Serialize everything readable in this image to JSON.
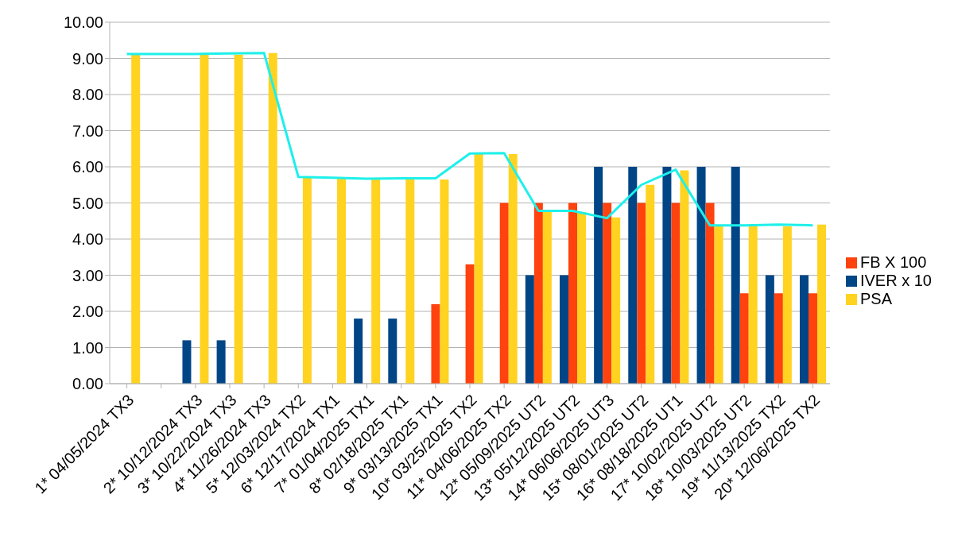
{
  "chart_data": {
    "type": "bar",
    "categories": [
      "1* 04/05/2024 TX3",
      null,
      "2* 10/12/2024 TX3",
      "3* 10/22/2024 TX3",
      "4* 11/26/2024 TX3",
      "5* 12/03/2024 TX2",
      "6* 12/17/2024 TX1",
      "7* 01/04/2025 TX1",
      "8* 02/18/2025 TX1",
      "9* 03/13/2025 TX1",
      "10* 03/25/2025 TX2",
      "11* 04/06/2025 TX2",
      "12* 05/09/2025 UT2",
      "13* 05/12/2025 UT2",
      "14* 06/06/2025 UT3",
      "15* 08/01/2025 UT2",
      "16* 08/18/2025 UT1",
      "17* 10/02/2025 UT2",
      "18* 10/03/2025 UT2",
      "19* 11/13/2025 TX2",
      "20* 12/06/2025 TX2"
    ],
    "series": [
      {
        "name": "IVER x 10",
        "color": "#004586",
        "values": [
          0,
          null,
          1.2,
          1.2,
          0,
          0,
          0,
          1.8,
          1.8,
          0,
          0,
          0,
          3,
          3,
          6,
          6,
          6,
          6,
          6,
          3,
          3
        ]
      },
      {
        "name": "FB X 100",
        "color": "#ff420e",
        "values": [
          0,
          null,
          0,
          0,
          0,
          0,
          0,
          0,
          0,
          2.2,
          3.3,
          5,
          5,
          5,
          5,
          5,
          5,
          5,
          2.5,
          2.5,
          2.5
        ]
      },
      {
        "name": "PSA",
        "color": "#ffd320",
        "values": [
          9.12,
          null,
          9.1,
          9.1,
          9.15,
          5.7,
          5.68,
          5.65,
          5.65,
          5.65,
          6.35,
          6.35,
          4.75,
          4.75,
          4.6,
          5.5,
          5.9,
          4.35,
          4.35,
          4.35,
          4.4
        ]
      },
      {
        "type": "line",
        "color": "#1ef0ea",
        "values": [
          9.12,
          null,
          9.12,
          9.14,
          9.15,
          5.72,
          5.7,
          5.67,
          5.68,
          5.68,
          6.37,
          6.38,
          4.78,
          4.78,
          4.58,
          5.5,
          5.92,
          4.38,
          4.38,
          4.4,
          4.38
        ]
      }
    ],
    "ylim": [
      0,
      10
    ],
    "yticks": [
      {
        "value": 0,
        "label": "0.00"
      },
      {
        "value": 1,
        "label": "1.00"
      },
      {
        "value": 2,
        "label": "2.00"
      },
      {
        "value": 3,
        "label": "3.00"
      },
      {
        "value": 4,
        "label": "4.00"
      },
      {
        "value": 5,
        "label": "5.00"
      },
      {
        "value": 6,
        "label": "6.00"
      },
      {
        "value": 7,
        "label": "7.00"
      },
      {
        "value": 8,
        "label": "8.00"
      },
      {
        "value": 9,
        "label": "9.00"
      },
      {
        "value": 10,
        "label": "10.00"
      }
    ],
    "grid": "y",
    "legend": "right",
    "marker": "none"
  }
}
